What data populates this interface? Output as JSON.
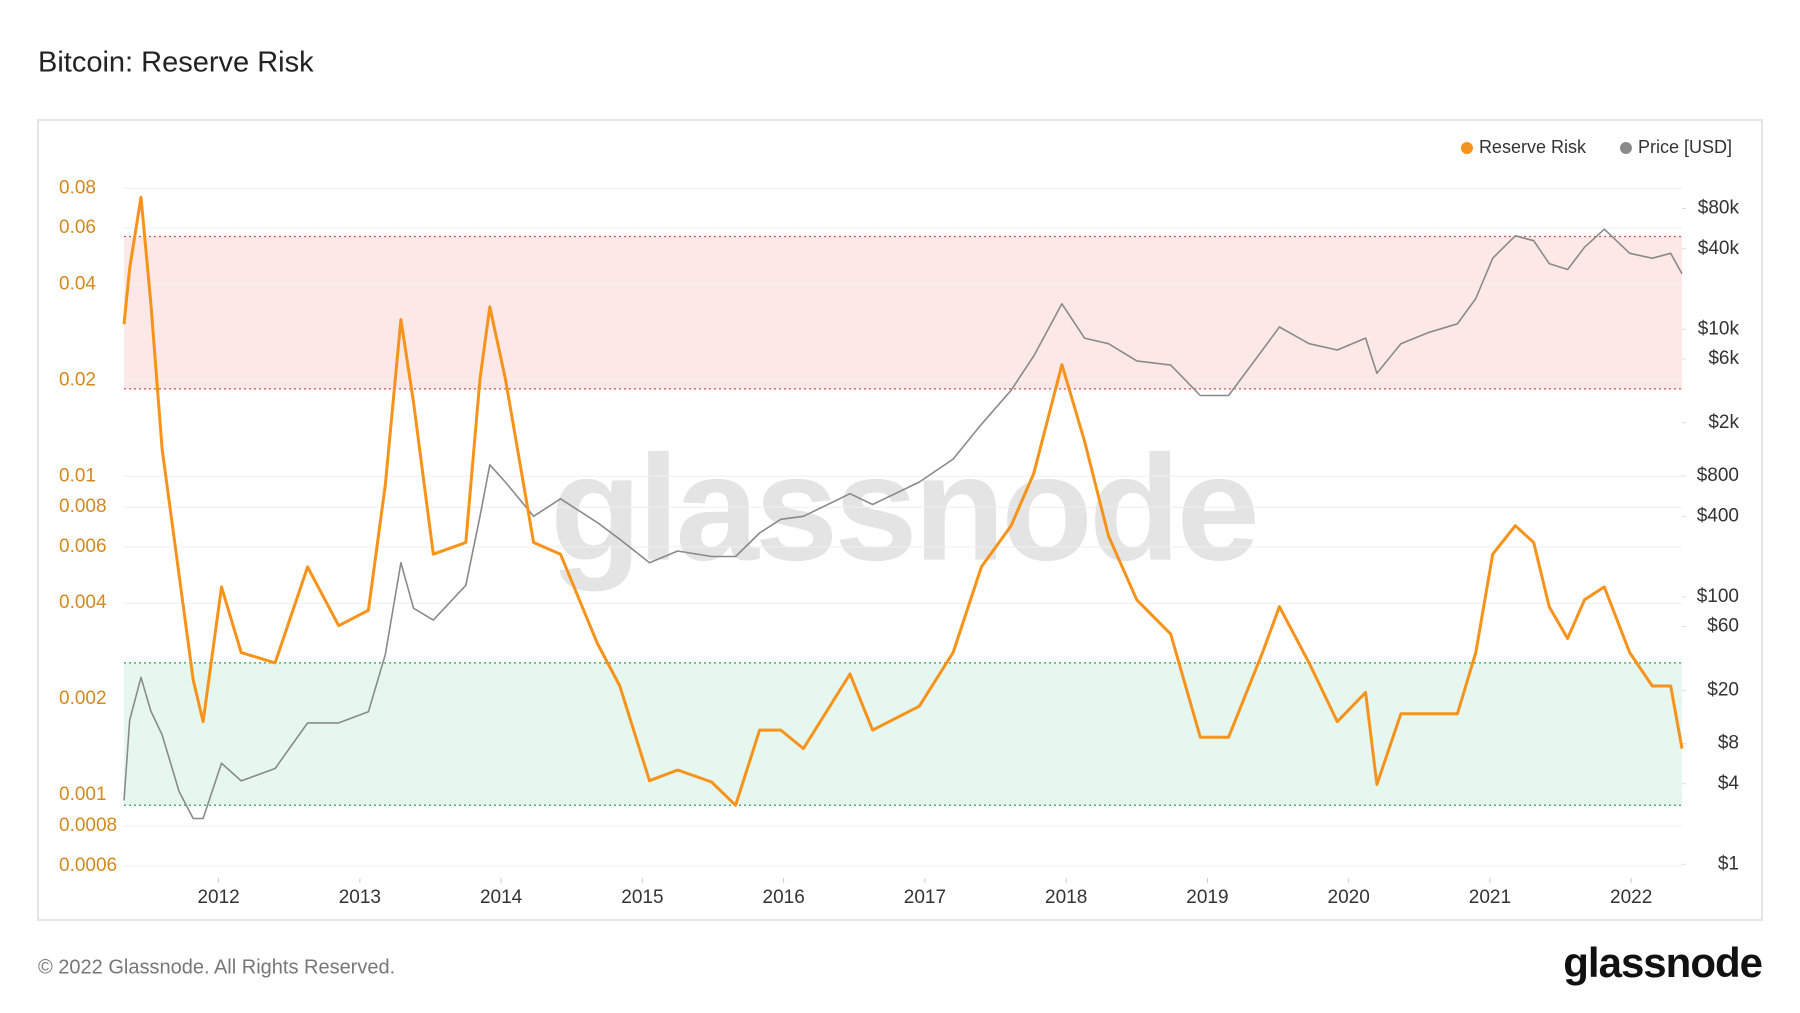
{
  "title": "Bitcoin: Reserve Risk",
  "footer": "© 2022 Glassnode. All Rights Reserved.",
  "logo": "glassnode",
  "chart_data": {
    "type": "line",
    "watermark": "glassnode",
    "legend": "top-right",
    "grid": true,
    "log_y": true,
    "log_y2": true,
    "xlim": [
      2011.33,
      2022.36
    ],
    "xticks": [
      2012,
      2013,
      2014,
      2015,
      2016,
      2017,
      2018,
      2019,
      2020,
      2021,
      2022
    ],
    "ylim": [
      0.00055,
      0.09
    ],
    "yticks": [
      0.0006,
      0.0008,
      0.001,
      0.002,
      0.004,
      0.006,
      0.008,
      0.01,
      0.02,
      0.04,
      0.06,
      0.08
    ],
    "y2lim": [
      0.79,
      150000
    ],
    "y2ticks": [
      {
        "value": 1,
        "label": "$1"
      },
      {
        "value": 4,
        "label": "$4"
      },
      {
        "value": 8,
        "label": "$8"
      },
      {
        "value": 20,
        "label": "$20"
      },
      {
        "value": 60,
        "label": "$60"
      },
      {
        "value": 100,
        "label": "$100"
      },
      {
        "value": 400,
        "label": "$400"
      },
      {
        "value": 800,
        "label": "$800"
      },
      {
        "value": 2000,
        "label": "$2k"
      },
      {
        "value": 6000,
        "label": "$6k"
      },
      {
        "value": 10000,
        "label": "$10k"
      },
      {
        "value": 40000,
        "label": "$40k"
      },
      {
        "value": 80000,
        "label": "$80k"
      }
    ],
    "bands": [
      {
        "range": [
          0.0188,
          0.0565
        ],
        "color": "#fde8e8",
        "edge": "#d9534f"
      },
      {
        "range": [
          0.00093,
          0.0026
        ],
        "color": "#e6f7ef",
        "edge": "#2e9e5b"
      }
    ],
    "x": [
      2011.33,
      2011.37,
      2011.45,
      2011.52,
      2011.6,
      2011.72,
      2011.82,
      2011.89,
      2012.02,
      2012.16,
      2012.4,
      2012.63,
      2012.85,
      2013.06,
      2013.18,
      2013.29,
      2013.38,
      2013.52,
      2013.75,
      2013.85,
      2013.92,
      2014.03,
      2014.23,
      2014.42,
      2014.68,
      2014.84,
      2015.05,
      2015.25,
      2015.49,
      2015.66,
      2015.83,
      2015.98,
      2016.14,
      2016.47,
      2016.63,
      2016.96,
      2017.2,
      2017.4,
      2017.61,
      2017.77,
      2017.97,
      2018.13,
      2018.3,
      2018.5,
      2018.74,
      2018.95,
      2019.15,
      2019.39,
      2019.51,
      2019.72,
      2019.92,
      2020.12,
      2020.2,
      2020.37,
      2020.57,
      2020.77,
      2020.9,
      2021.02,
      2021.18,
      2021.31,
      2021.42,
      2021.55,
      2021.67,
      2021.81,
      2021.99,
      2022.15,
      2022.28,
      2022.36
    ],
    "series": [
      {
        "name": "Reserve Risk",
        "color": "#f7931a",
        "values": [
          0.03,
          0.045,
          0.075,
          0.035,
          0.0122,
          0.0049,
          0.0023,
          0.0017,
          0.0045,
          0.0028,
          0.0026,
          0.0052,
          0.0034,
          0.0038,
          0.0094,
          0.031,
          0.017,
          0.0057,
          0.0062,
          0.0202,
          0.034,
          0.0202,
          0.0062,
          0.0057,
          0.003,
          0.0022,
          0.00111,
          0.0012,
          0.0011,
          0.00093,
          0.0016,
          0.0016,
          0.0014,
          0.0024,
          0.0016,
          0.0019,
          0.0028,
          0.0052,
          0.007,
          0.0102,
          0.0224,
          0.0129,
          0.0065,
          0.0041,
          0.0032,
          0.00152,
          0.00152,
          0.0028,
          0.0039,
          0.0026,
          0.0017,
          0.0021,
          0.00108,
          0.0018,
          0.0018,
          0.0018,
          0.0028,
          0.0057,
          0.007,
          0.0062,
          0.0039,
          0.0031,
          0.0041,
          0.0045,
          0.0028,
          0.0022,
          0.0022,
          0.0014
        ]
      },
      {
        "name": "Price [USD]",
        "color": "#8a8a8a",
        "axis": "y2",
        "values": [
          3,
          12,
          25,
          14,
          9.3,
          3.5,
          2.2,
          2.2,
          5.7,
          4.2,
          5.2,
          11.4,
          11.4,
          13.8,
          37,
          180,
          82,
          67,
          122,
          400,
          970,
          720,
          400,
          540,
          360,
          269,
          180,
          220,
          200,
          200,
          300,
          380,
          400,
          590,
          490,
          720,
          1070,
          1950,
          3500,
          6300,
          15500,
          8600,
          7800,
          5800,
          5400,
          3200,
          3200,
          7000,
          10400,
          7800,
          7000,
          8600,
          4700,
          7800,
          9500,
          11000,
          17000,
          34000,
          50000,
          46000,
          31000,
          28000,
          41000,
          56000,
          37000,
          34000,
          37000,
          26000
        ]
      }
    ]
  }
}
